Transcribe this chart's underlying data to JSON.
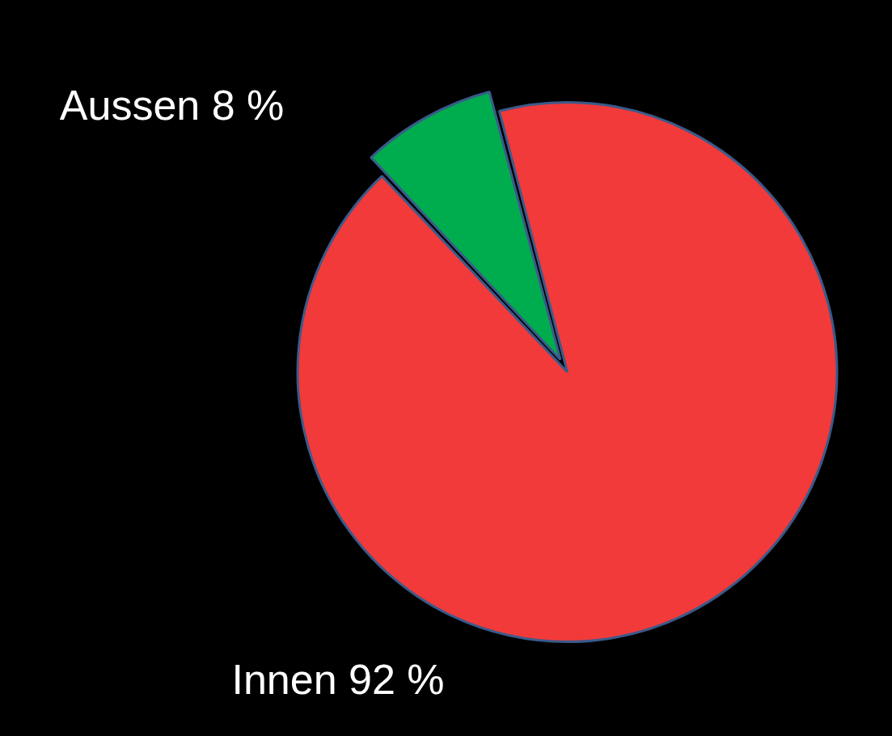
{
  "chart_data": {
    "type": "pie",
    "categories": [
      "Aussen",
      "Innen"
    ],
    "values": [
      8,
      92
    ],
    "colors": [
      "#00ad4e",
      "#f23a3a"
    ],
    "value_labels": [
      "8 %",
      "92 %"
    ],
    "legend": false
  }
}
